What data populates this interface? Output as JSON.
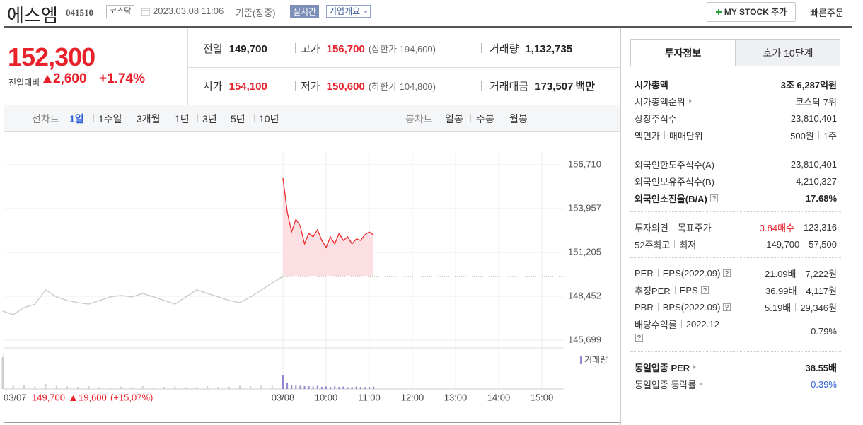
{
  "header": {
    "name": "에스엠",
    "code": "041510",
    "market": "코스닥",
    "datetime": "2023.03.08 11:06",
    "basis": "기준(장중)",
    "realtime": "실시간",
    "company_info": "기업개요",
    "my_stock": "MY STOCK 추가",
    "quick_order": "빠른주문"
  },
  "quote": {
    "price": "152,300",
    "change_label": "전일대비",
    "change": "2,600",
    "change_rate": "+1.74%",
    "rows": [
      [
        {
          "label": "전일",
          "value": "149,700"
        },
        {
          "label": "고가",
          "value": "156,700",
          "note": "(상한가 194,600)",
          "color": "#e8212b"
        },
        {
          "label": "거래량",
          "value": "1,132,735"
        }
      ],
      [
        {
          "label": "시가",
          "value": "154,100",
          "color": "#e8212b"
        },
        {
          "label": "저가",
          "value": "150,600",
          "note": "(하한가 104,800)",
          "color": "#e8212b"
        },
        {
          "label": "거래대금",
          "value": "173,507",
          "unit": "백만"
        }
      ]
    ]
  },
  "chart_tabs": {
    "line_label": "선차트",
    "periods": [
      "1일",
      "1주일",
      "3개월",
      "1년",
      "3년",
      "5년",
      "10년"
    ],
    "active": 0,
    "candle_label": "봉차트",
    "candles": [
      "일봉",
      "주봉",
      "월봉"
    ]
  },
  "chart_data": {
    "type": "line",
    "xlim": [
      -6.5,
      6.5
    ],
    "xticks": [
      {
        "value": -6.5,
        "label": "03/07"
      },
      {
        "value": 0,
        "label": "03/08"
      },
      {
        "value": 1,
        "label": "10:00"
      },
      {
        "value": 2,
        "label": "11:00"
      },
      {
        "value": 3,
        "label": "12:00"
      },
      {
        "value": 4,
        "label": "13:00"
      },
      {
        "value": 5,
        "label": "14:00"
      },
      {
        "value": 6,
        "label": "15:00"
      }
    ],
    "ylim": [
      145699,
      156710
    ],
    "yticks": [
      {
        "value": 145699,
        "label": "145,699"
      },
      {
        "value": 148452,
        "label": "148,452"
      },
      {
        "value": 151205,
        "label": "151,205"
      },
      {
        "value": 153957,
        "label": "153,957"
      },
      {
        "value": 156710,
        "label": "156,710"
      }
    ],
    "grid": true,
    "baseline": 149700,
    "series": [
      {
        "color": "#c8c8c8",
        "x": [
          -6.5,
          -6.25,
          -6,
          -5.75,
          -5.5,
          -5.25,
          -5,
          -4.75,
          -4.5,
          -4.25,
          -4,
          -3.75,
          -3.5,
          -3.25,
          -3,
          -2.75,
          -2.5,
          -2.25,
          -2,
          -1.75,
          -1.5,
          -1.25,
          -1,
          -0.75,
          -0.5,
          -0.25,
          0
        ],
        "values": [
          147520,
          147300,
          147740,
          147960,
          148850,
          148410,
          148190,
          148050,
          147960,
          148190,
          148410,
          148500,
          148410,
          148630,
          148410,
          148190,
          147960,
          148410,
          148850,
          148630,
          148410,
          148190,
          148050,
          148410,
          148850,
          149300,
          149700
        ]
      },
      {
        "color": "#ee2b2b",
        "fill": "#fcdfe2",
        "x": [
          0,
          0.1,
          0.2,
          0.3,
          0.4,
          0.5,
          0.6,
          0.7,
          0.8,
          0.9,
          1,
          1.1,
          1.2,
          1.3,
          1.4,
          1.5,
          1.6,
          1.7,
          1.8,
          1.9,
          2,
          2.1
        ],
        "values": [
          155870,
          153740,
          152490,
          153290,
          152850,
          151740,
          152400,
          152180,
          152630,
          151960,
          151520,
          152180,
          151740,
          152400,
          151960,
          152180,
          151740,
          152050,
          151960,
          152310,
          152490,
          152300
        ]
      }
    ],
    "volume": {
      "label": "거래량",
      "ylim": [
        0,
        100
      ],
      "series": [
        {
          "color": "#cfcfcf",
          "x": [
            -6.5,
            -6.25,
            -6,
            -5.75,
            -5.5,
            -5.25,
            -5,
            -4.75,
            -4.5,
            -4.25,
            -4,
            -3.75,
            -3.5,
            -3.25,
            -3,
            -2.75,
            -2.5,
            -2.25,
            -2,
            -1.75,
            -1.5,
            -1.25,
            -1,
            -0.75,
            -0.5,
            -0.25,
            0
          ],
          "values": [
            90,
            12,
            10,
            8,
            14,
            9,
            7,
            6,
            8,
            6,
            5,
            7,
            6,
            8,
            5,
            6,
            7,
            5,
            6,
            8,
            6,
            7,
            9,
            8,
            10,
            12,
            15
          ]
        },
        {
          "color": "#9486d0",
          "x": [
            0,
            0.1,
            0.2,
            0.3,
            0.4,
            0.5,
            0.6,
            0.7,
            0.8,
            0.9,
            1,
            1.1,
            1.2,
            1.3,
            1.4,
            1.5,
            1.6,
            1.7,
            1.8,
            1.9,
            2,
            2.1
          ],
          "values": [
            40,
            18,
            12,
            10,
            9,
            8,
            8,
            7,
            9,
            6,
            7,
            6,
            8,
            6,
            7,
            5,
            6,
            7,
            6,
            5,
            6,
            7
          ]
        }
      ]
    },
    "prev_day": {
      "close": "149,700",
      "change": "19,600",
      "rate": "(+15,07%)"
    }
  },
  "invest_panel": {
    "tabs": [
      "투자정보",
      "호가 10단계"
    ],
    "sections": [
      {
        "rows": [
          {
            "label": [
              "시가총액"
            ],
            "value": [
              "3조 6,287억원"
            ],
            "bold": true
          },
          {
            "label": [
              "시가총액순위"
            ],
            "arrow": true,
            "value": [
              "코스닥 7위"
            ]
          },
          {
            "label": [
              "상장주식수"
            ],
            "value": [
              "23,810,401"
            ]
          },
          {
            "label": [
              "액면가",
              "매매단위"
            ],
            "value": [
              "500원",
              "1주"
            ]
          }
        ]
      },
      {
        "rows": [
          {
            "label": [
              "외국인한도주식수(A)"
            ],
            "value": [
              "23,810,401"
            ]
          },
          {
            "label": [
              "외국인보유주식수(B)"
            ],
            "value": [
              "4,210,327"
            ]
          },
          {
            "label": [
              "외국인소진율(B/A)"
            ],
            "help": true,
            "value": [
              "17.68%"
            ],
            "bold": true
          }
        ]
      },
      {
        "rows": [
          {
            "label": [
              "투자의견",
              "목표주가"
            ],
            "value": [
              "3.84매수",
              "123,316"
            ],
            "colors": [
              "#e8212b",
              "#333333"
            ]
          },
          {
            "label": [
              "52주최고",
              "최저"
            ],
            "value": [
              "149,700",
              "57,500"
            ]
          }
        ]
      },
      {
        "rows": [
          {
            "label": [
              "PER",
              "EPS(2022.09)"
            ],
            "help": true,
            "value": [
              "21.09배",
              "7,222원"
            ]
          },
          {
            "label": [
              "추정PER",
              "EPS"
            ],
            "help": true,
            "value": [
              "36.99배",
              "4,117원"
            ]
          },
          {
            "label": [
              "PBR",
              "BPS(2022.09)"
            ],
            "help": true,
            "value": [
              "5.19배",
              "29,346원"
            ]
          },
          {
            "label": [
              "배당수익률",
              "2022.12"
            ],
            "help": true,
            "tall": true,
            "value": [
              "0.79%"
            ]
          }
        ]
      },
      {
        "rows": [
          {
            "label": [
              "동일업종 PER"
            ],
            "arrow": true,
            "value": [
              "38.55배"
            ],
            "bold": true
          },
          {
            "label": [
              "동일업종 등락률"
            ],
            "arrow": true,
            "value": [
              "-0.39%"
            ],
            "colors": [
              "#2b5fd9"
            ]
          }
        ]
      }
    ]
  }
}
